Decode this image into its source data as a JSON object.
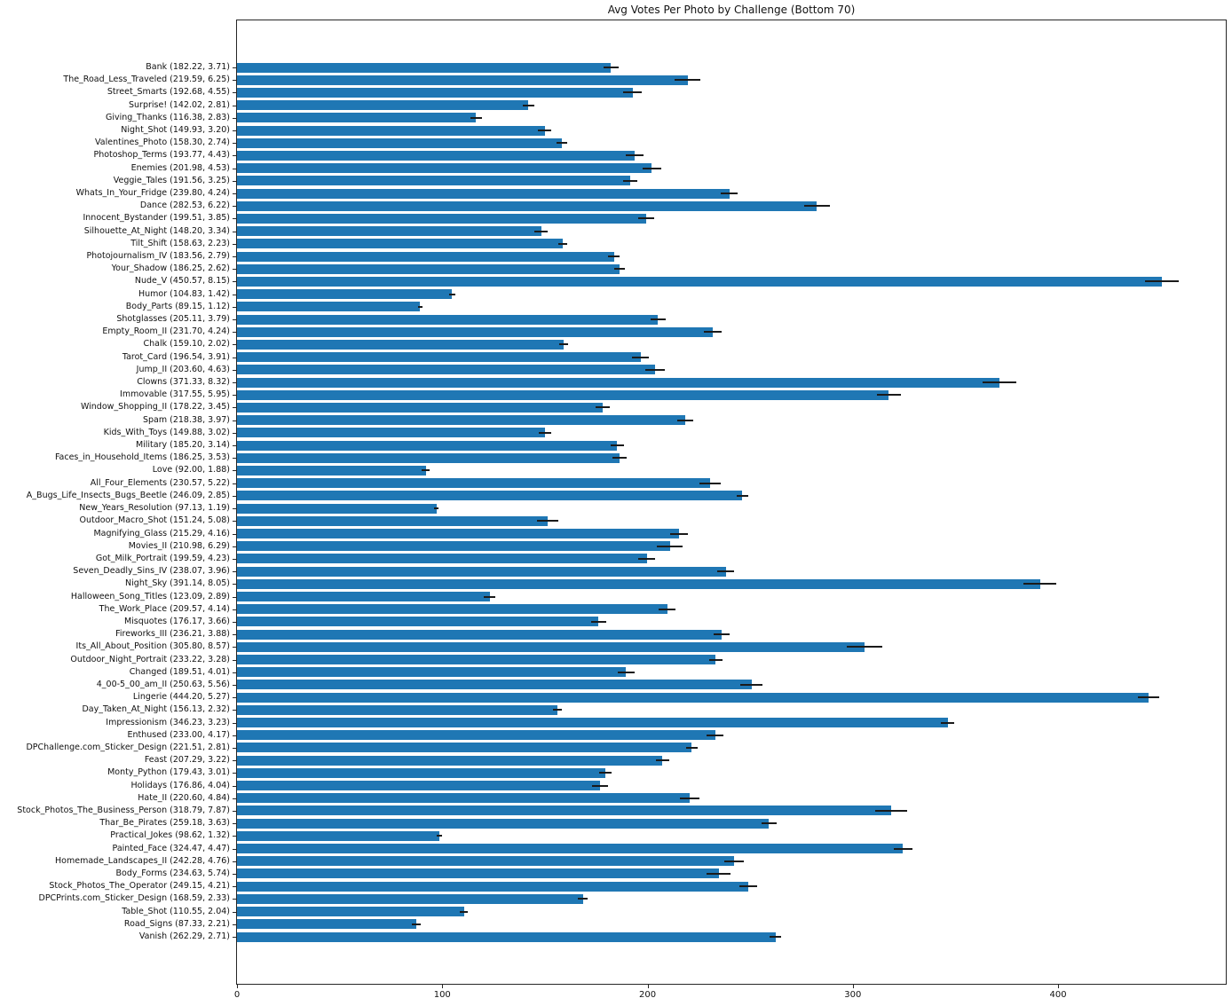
{
  "chart_data": {
    "type": "bar",
    "orientation": "horizontal",
    "title": "Avg Votes Per Photo by Challenge (Bottom 70)",
    "xlabel": "",
    "ylabel": "",
    "xlim": [
      0,
      481.7
    ],
    "xticks": [
      0,
      100,
      200,
      300,
      400
    ],
    "grid": false,
    "legend": false,
    "bar_color": "#1f77b4",
    "error_color": "#1a1a1a",
    "bars": [
      {
        "label": "Bank (182.22, 3.71)",
        "value": 182.22,
        "error": 3.71
      },
      {
        "label": "The_Road_Less_Traveled (219.59, 6.25)",
        "value": 219.59,
        "error": 6.25
      },
      {
        "label": "Street_Smarts (192.68, 4.55)",
        "value": 192.68,
        "error": 4.55
      },
      {
        "label": "Surprise! (142.02, 2.81)",
        "value": 142.02,
        "error": 2.81
      },
      {
        "label": "Giving_Thanks (116.38, 2.83)",
        "value": 116.38,
        "error": 2.83
      },
      {
        "label": "Night_Shot (149.93, 3.20)",
        "value": 149.93,
        "error": 3.2
      },
      {
        "label": "Valentines_Photo (158.30, 2.74)",
        "value": 158.3,
        "error": 2.74
      },
      {
        "label": "Photoshop_Terms (193.77, 4.43)",
        "value": 193.77,
        "error": 4.43
      },
      {
        "label": "Enemies (201.98, 4.53)",
        "value": 201.98,
        "error": 4.53
      },
      {
        "label": "Veggie_Tales (191.56, 3.25)",
        "value": 191.56,
        "error": 3.25
      },
      {
        "label": "Whats_In_Your_Fridge (239.80, 4.24)",
        "value": 239.8,
        "error": 4.24
      },
      {
        "label": "Dance (282.53, 6.22)",
        "value": 282.53,
        "error": 6.22
      },
      {
        "label": "Innocent_Bystander (199.51, 3.85)",
        "value": 199.51,
        "error": 3.85
      },
      {
        "label": "Silhouette_At_Night (148.20, 3.34)",
        "value": 148.2,
        "error": 3.34
      },
      {
        "label": "Tilt_Shift (158.63, 2.23)",
        "value": 158.63,
        "error": 2.23
      },
      {
        "label": "Photojournalism_IV (183.56, 2.79)",
        "value": 183.56,
        "error": 2.79
      },
      {
        "label": "Your_Shadow (186.25, 2.62)",
        "value": 186.25,
        "error": 2.62
      },
      {
        "label": "Nude_V (450.57, 8.15)",
        "value": 450.57,
        "error": 8.15
      },
      {
        "label": "Humor (104.83, 1.42)",
        "value": 104.83,
        "error": 1.42
      },
      {
        "label": "Body_Parts (89.15, 1.12)",
        "value": 89.15,
        "error": 1.12
      },
      {
        "label": "Shotglasses (205.11, 3.79)",
        "value": 205.11,
        "error": 3.79
      },
      {
        "label": "Empty_Room_II (231.70, 4.24)",
        "value": 231.7,
        "error": 4.24
      },
      {
        "label": "Chalk (159.10, 2.02)",
        "value": 159.1,
        "error": 2.02
      },
      {
        "label": "Tarot_Card (196.54, 3.91)",
        "value": 196.54,
        "error": 3.91
      },
      {
        "label": "Jump_II (203.60, 4.63)",
        "value": 203.6,
        "error": 4.63
      },
      {
        "label": "Clowns (371.33, 8.32)",
        "value": 371.33,
        "error": 8.32
      },
      {
        "label": "Immovable (317.55, 5.95)",
        "value": 317.55,
        "error": 5.95
      },
      {
        "label": "Window_Shopping_II (178.22, 3.45)",
        "value": 178.22,
        "error": 3.45
      },
      {
        "label": "Spam (218.38, 3.97)",
        "value": 218.38,
        "error": 3.97
      },
      {
        "label": "Kids_With_Toys (149.88, 3.02)",
        "value": 149.88,
        "error": 3.02
      },
      {
        "label": "Military (185.20, 3.14)",
        "value": 185.2,
        "error": 3.14
      },
      {
        "label": "Faces_in_Household_Items (186.25, 3.53)",
        "value": 186.25,
        "error": 3.53
      },
      {
        "label": "Love (92.00, 1.88)",
        "value": 92.0,
        "error": 1.88
      },
      {
        "label": "All_Four_Elements (230.57, 5.22)",
        "value": 230.57,
        "error": 5.22
      },
      {
        "label": "A_Bugs_Life_Insects_Bugs_Beetle (246.09, 2.85)",
        "value": 246.09,
        "error": 2.85
      },
      {
        "label": "New_Years_Resolution (97.13, 1.19)",
        "value": 97.13,
        "error": 1.19
      },
      {
        "label": "Outdoor_Macro_Shot (151.24, 5.08)",
        "value": 151.24,
        "error": 5.08
      },
      {
        "label": "Magnifying_Glass (215.29, 4.16)",
        "value": 215.29,
        "error": 4.16
      },
      {
        "label": "Movies_II (210.98, 6.29)",
        "value": 210.98,
        "error": 6.29
      },
      {
        "label": "Got_Milk_Portrait (199.59, 4.23)",
        "value": 199.59,
        "error": 4.23
      },
      {
        "label": "Seven_Deadly_Sins_IV (238.07, 3.96)",
        "value": 238.07,
        "error": 3.96
      },
      {
        "label": "Night_Sky (391.14, 8.05)",
        "value": 391.14,
        "error": 8.05
      },
      {
        "label": "Halloween_Song_Titles (123.09, 2.89)",
        "value": 123.09,
        "error": 2.89
      },
      {
        "label": "The_Work_Place (209.57, 4.14)",
        "value": 209.57,
        "error": 4.14
      },
      {
        "label": "Misquotes (176.17, 3.66)",
        "value": 176.17,
        "error": 3.66
      },
      {
        "label": "Fireworks_III (236.21, 3.88)",
        "value": 236.21,
        "error": 3.88
      },
      {
        "label": "Its_All_About_Position (305.80, 8.57)",
        "value": 305.8,
        "error": 8.57
      },
      {
        "label": "Outdoor_Night_Portrait (233.22, 3.28)",
        "value": 233.22,
        "error": 3.28
      },
      {
        "label": "Changed (189.51, 4.01)",
        "value": 189.51,
        "error": 4.01
      },
      {
        "label": "4_00-5_00_am_II (250.63, 5.56)",
        "value": 250.63,
        "error": 5.56
      },
      {
        "label": "Lingerie (444.20, 5.27)",
        "value": 444.2,
        "error": 5.27
      },
      {
        "label": "Day_Taken_At_Night (156.13, 2.32)",
        "value": 156.13,
        "error": 2.32
      },
      {
        "label": "Impressionism (346.23, 3.23)",
        "value": 346.23,
        "error": 3.23
      },
      {
        "label": "Enthused (233.00, 4.17)",
        "value": 233.0,
        "error": 4.17
      },
      {
        "label": "DPChallenge.com_Sticker_Design (221.51, 2.81)",
        "value": 221.51,
        "error": 2.81
      },
      {
        "label": "Feast (207.29, 3.22)",
        "value": 207.29,
        "error": 3.22
      },
      {
        "label": "Monty_Python (179.43, 3.01)",
        "value": 179.43,
        "error": 3.01
      },
      {
        "label": "Holidays (176.86, 4.04)",
        "value": 176.86,
        "error": 4.04
      },
      {
        "label": "Hate_II (220.60, 4.84)",
        "value": 220.6,
        "error": 4.84
      },
      {
        "label": "Stock_Photos_The_Business_Person (318.79, 7.87)",
        "value": 318.79,
        "error": 7.87
      },
      {
        "label": "Thar_Be_Pirates (259.18, 3.63)",
        "value": 259.18,
        "error": 3.63
      },
      {
        "label": "Practical_Jokes (98.62, 1.32)",
        "value": 98.62,
        "error": 1.32
      },
      {
        "label": "Painted_Face (324.47, 4.47)",
        "value": 324.47,
        "error": 4.47
      },
      {
        "label": "Homemade_Landscapes_II (242.28, 4.76)",
        "value": 242.28,
        "error": 4.76
      },
      {
        "label": "Body_Forms (234.63, 5.74)",
        "value": 234.63,
        "error": 5.74
      },
      {
        "label": "Stock_Photos_The_Operator (249.15, 4.21)",
        "value": 249.15,
        "error": 4.21
      },
      {
        "label": "DPCPrints.com_Sticker_Design (168.59, 2.33)",
        "value": 168.59,
        "error": 2.33
      },
      {
        "label": "Table_Shot (110.55, 2.04)",
        "value": 110.55,
        "error": 2.04
      },
      {
        "label": "Road_Signs (87.33, 2.21)",
        "value": 87.33,
        "error": 2.21
      },
      {
        "label": "Vanish (262.29, 2.71)",
        "value": 262.29,
        "error": 2.71
      }
    ]
  }
}
